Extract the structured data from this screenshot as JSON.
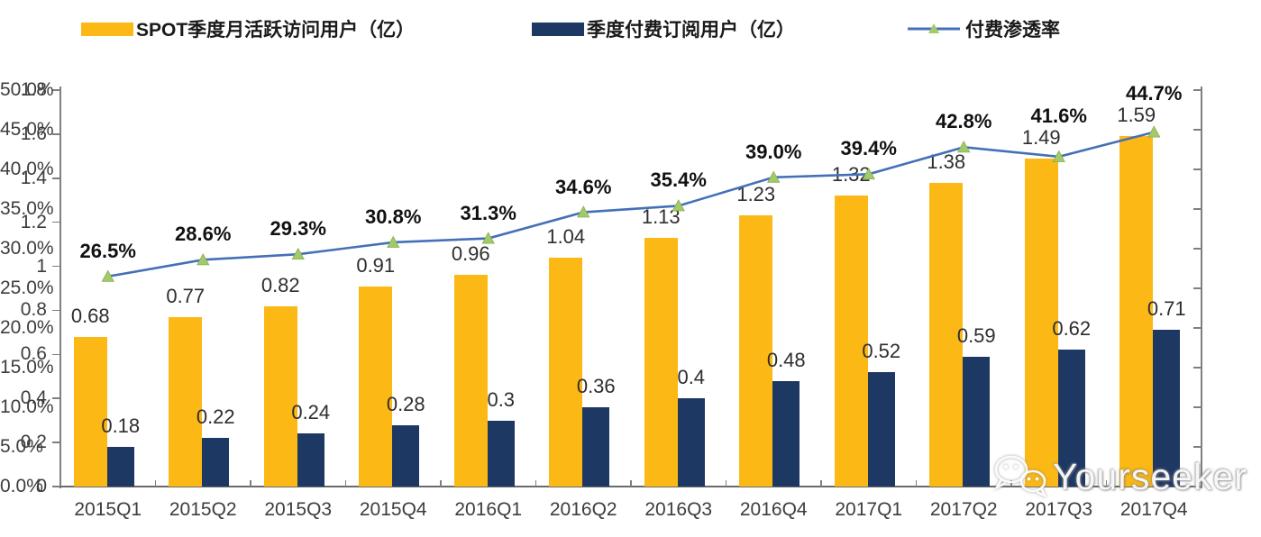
{
  "legend": {
    "items": [
      {
        "label": "SPOT季度月活跃访问用户（亿）"
      },
      {
        "label": "季度付费订阅用户（亿）"
      },
      {
        "label": "付费渗透率"
      }
    ]
  },
  "colors": {
    "mau_bar": "#FCB814",
    "subs_bar": "#1E3864",
    "line": "#4470B8",
    "marker_fill": "#A3C96A",
    "marker_edge": "#86B150",
    "axis": "#7f7f7f"
  },
  "chart_data": {
    "type": "bar",
    "subtype": "grouped bars with secondary-axis line",
    "categories": [
      "2015Q1",
      "2015Q2",
      "2015Q3",
      "2015Q4",
      "2016Q1",
      "2016Q2",
      "2016Q3",
      "2016Q4",
      "2017Q1",
      "2017Q2",
      "2017Q3",
      "2017Q4"
    ],
    "series": [
      {
        "name": "SPOT季度月活跃访问用户（亿）",
        "type": "bar",
        "axis": "left",
        "values": [
          0.68,
          0.77,
          0.82,
          0.91,
          0.96,
          1.04,
          1.13,
          1.23,
          1.32,
          1.38,
          1.49,
          1.59
        ],
        "labels": [
          "0.68",
          "0.77",
          "0.82",
          "0.91",
          "0.96",
          "1.04",
          "1.13",
          "1.23",
          "1.32",
          "1.38",
          "1.49",
          "1.59"
        ]
      },
      {
        "name": "季度付费订阅用户（亿）",
        "type": "bar",
        "axis": "left",
        "values": [
          0.18,
          0.22,
          0.24,
          0.28,
          0.3,
          0.36,
          0.4,
          0.48,
          0.52,
          0.59,
          0.62,
          0.71
        ],
        "labels": [
          "0.18",
          "0.22",
          "0.24",
          "0.28",
          "0.3",
          "0.36",
          "0.4",
          "0.48",
          "0.52",
          "0.59",
          "0.62",
          "0.71"
        ]
      },
      {
        "name": "付费渗透率",
        "type": "line",
        "axis": "right",
        "values": [
          26.5,
          28.6,
          29.3,
          30.8,
          31.3,
          34.6,
          35.4,
          39.0,
          39.4,
          42.8,
          41.6,
          44.7
        ],
        "labels": [
          "26.5%",
          "28.6%",
          "29.3%",
          "30.8%",
          "31.3%",
          "34.6%",
          "35.4%",
          "39.0%",
          "39.4%",
          "42.8%",
          "41.6%",
          "44.7%"
        ]
      }
    ],
    "left_axis": {
      "min": 0,
      "max": 1.8,
      "ticks": [
        "0",
        "0.2",
        "0.4",
        "0.6",
        "0.8",
        "1",
        "1.2",
        "1.4",
        "1.6",
        "1.8"
      ]
    },
    "right_axis": {
      "min": 0,
      "max": 50,
      "ticks": [
        "0.0%",
        "5.0%",
        "10.0%",
        "15.0%",
        "20.0%",
        "25.0%",
        "30.0%",
        "35.0%",
        "40.0%",
        "45.0%",
        "50.0%"
      ]
    },
    "grid": false,
    "legend_position": "top"
  },
  "watermark": {
    "text": "Yourseeker"
  }
}
